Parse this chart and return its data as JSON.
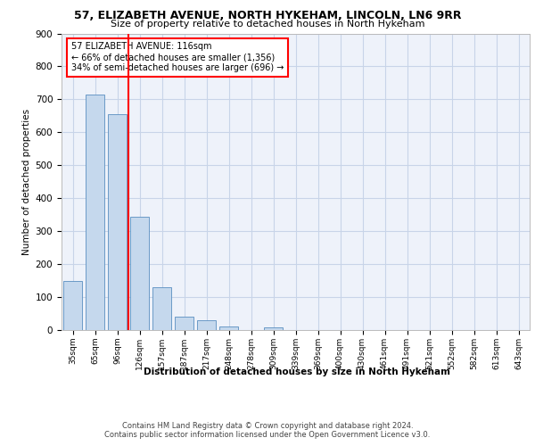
{
  "title_line1": "57, ELIZABETH AVENUE, NORTH HYKEHAM, LINCOLN, LN6 9RR",
  "title_line2": "Size of property relative to detached houses in North Hykeham",
  "xlabel": "Distribution of detached houses by size in North Hykeham",
  "ylabel": "Number of detached properties",
  "categories": [
    "35sqm",
    "65sqm",
    "96sqm",
    "126sqm",
    "157sqm",
    "187sqm",
    "217sqm",
    "248sqm",
    "278sqm",
    "309sqm",
    "339sqm",
    "369sqm",
    "400sqm",
    "430sqm",
    "461sqm",
    "491sqm",
    "521sqm",
    "552sqm",
    "582sqm",
    "613sqm",
    "643sqm"
  ],
  "bar_values": [
    150,
    714,
    655,
    343,
    130,
    40,
    30,
    11,
    0,
    8,
    0,
    0,
    0,
    0,
    0,
    0,
    0,
    0,
    0,
    0,
    0
  ],
  "bar_color": "#c5d8ed",
  "bar_edge_color": "#5a8fc0",
  "grid_color": "#c8d4e8",
  "background_color": "#eef2fa",
  "vline_x": 2.5,
  "vline_color": "red",
  "annotation_text": "57 ELIZABETH AVENUE: 116sqm\n← 66% of detached houses are smaller (1,356)\n34% of semi-detached houses are larger (696) →",
  "annotation_box_color": "white",
  "annotation_box_edge": "red",
  "footer_line1": "Contains HM Land Registry data © Crown copyright and database right 2024.",
  "footer_line2": "Contains public sector information licensed under the Open Government Licence v3.0.",
  "ylim": [
    0,
    900
  ],
  "yticks": [
    0,
    100,
    200,
    300,
    400,
    500,
    600,
    700,
    800,
    900
  ]
}
